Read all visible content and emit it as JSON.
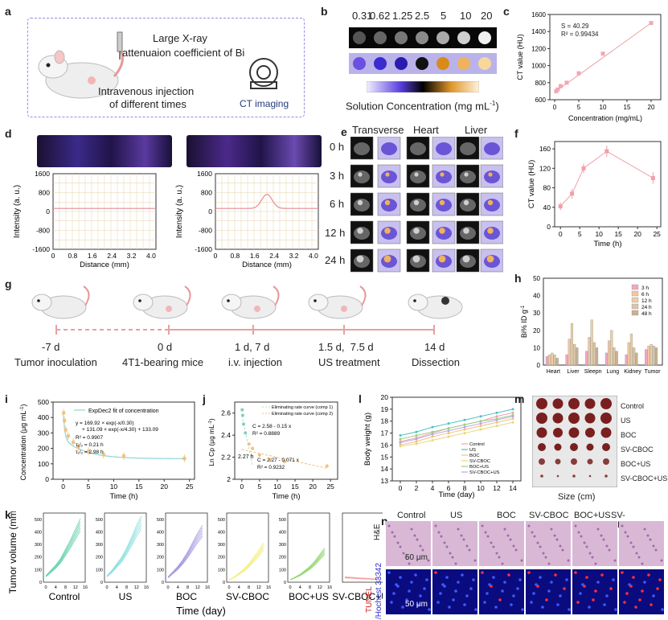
{
  "panels": {
    "a": {
      "letter": "a",
      "text1": "Large X-ray",
      "text2": "attenuaion coefficient of Bi",
      "text3": "Intravenous injection",
      "text4": "of different times",
      "ct_label": "CT imaging"
    },
    "b": {
      "letter": "b",
      "concentrations": [
        "0.31",
        "0.62",
        "1.25",
        "2.5",
        "5",
        "10",
        "20"
      ],
      "axis_label": "Solution Concentration (mg mL",
      "axis_sup": "-1",
      "axis_close": ")"
    },
    "c": {
      "letter": "c",
      "s_text": "S = 40.29",
      "r2_text": "R² = 0.99434",
      "xlabel": "Concentration (mg/mL)",
      "ylabel": "CT value (HU)"
    },
    "d": {
      "letter": "d",
      "ylabel": "Intensity (a. u.)",
      "xlabel": "Distance (mm)",
      "yticks": [
        "1600",
        "800",
        "0",
        "-800",
        "-1600"
      ],
      "xticks": [
        "0",
        "0.8",
        "1.6",
        "2.4",
        "3.2",
        "4.0"
      ]
    },
    "e": {
      "letter": "e",
      "cols": [
        "Transverse",
        "Heart",
        "Liver"
      ],
      "rows": [
        "0 h",
        "3 h",
        "6 h",
        "12 h",
        "24 h"
      ]
    },
    "f": {
      "letter": "f",
      "xlabel": "Time (h)",
      "ylabel": "CT value (HU)"
    },
    "g": {
      "letter": "g",
      "days": [
        "-7 d",
        "0 d",
        "1 d, 7 d",
        "1.5 d,  7.5 d",
        "14 d"
      ],
      "labels": [
        "Tumor inoculation",
        "4T1-bearing mice",
        "i.v. injection",
        "US treatment",
        "Dissection"
      ]
    },
    "h": {
      "letter": "h",
      "ylabel": "Bi% ID g",
      "ysup": "-1",
      "legend": [
        "3 h",
        "6 h",
        "12 h",
        "24 h",
        "48 h"
      ],
      "categories": [
        "Heart",
        "Liver",
        "Sleepn",
        "Lung",
        "Kidney",
        "Tumor"
      ]
    },
    "i": {
      "letter": "i",
      "legend": "ExpDec2 fit of concentration",
      "eq1": "y = 169.92 × exp(-x/0.30)",
      "eq2": "+ 131.09 × exp(-x/4.30) + 133.09",
      "r2": "R² = 0.9907",
      "t1": "τ₁/₂ = 0.21 h",
      "t2": "τ₁/₂ = 2.98 h",
      "xlabel": "Time (h)",
      "ylabel": "Concentration (μg mL",
      "ysup": "-1",
      "yclose": ")"
    },
    "j": {
      "letter": "j",
      "legend1": "Eliminating rate curve (comp 1)",
      "legend2": "Eliminating rate curve (comp 2)",
      "eqa": "C",
      "eqa2": " = 2.58 - 0.15 x",
      "r2a": "R² = 0.8889",
      "eqb2": " = 2.27 - 0.071 x",
      "r2b": "R² = 0.9232",
      "time_mark": "2.27 h",
      "xlabel": "Time (h)",
      "ylabel": "Ln Cp (μg mL",
      "ysup": "-1",
      "yclose": ")"
    },
    "l": {
      "letter": "l",
      "legend": [
        "Control",
        "US",
        "BOC",
        "SV-CBOC",
        "BOC+US",
        "SV-CBOC+US"
      ],
      "xlabel": "Time (day)",
      "ylabel": "Body weight (g)"
    },
    "m": {
      "letter": "m",
      "groups": [
        "Control",
        "US",
        "BOC",
        "SV-CBOC",
        "BOC+US",
        "SV-CBOC+US"
      ],
      "xlabel": "Size (cm)"
    },
    "k": {
      "letter": "k",
      "groups": [
        "Control",
        "US",
        "BOC",
        "SV-CBOC",
        "BOC+US",
        "SV-CBOC+US"
      ],
      "xlabel": "Time (day)",
      "ylabel": "Tumor volume (mm",
      "ysup": "3",
      "yclose": ")"
    },
    "n": {
      "letter": "n",
      "groups": [
        "Control",
        "US",
        "BOC",
        "SV-CBOC",
        "BOC+US",
        "SV-CBOC+US"
      ],
      "row1": "H&E",
      "row2a": "TUNEL",
      "row2b": "/Hochest 33342",
      "scale": "50 μm"
    }
  },
  "chart_data": [
    {
      "id": "c",
      "type": "scatter",
      "x": [
        0.31,
        0.62,
        1.25,
        2.5,
        5,
        10,
        20
      ],
      "y": [
        700,
        720,
        760,
        800,
        910,
        1140,
        1500
      ],
      "xlim": [
        -1,
        22
      ],
      "ylim": [
        600,
        1600
      ],
      "xticks": [
        0,
        5,
        10,
        15,
        20
      ],
      "yticks": [
        600,
        800,
        1000,
        1200,
        1400,
        1600
      ]
    },
    {
      "id": "f",
      "type": "line",
      "x": [
        0,
        3,
        6,
        12,
        24
      ],
      "y": [
        42,
        68,
        120,
        155,
        100
      ],
      "err": [
        8,
        10,
        10,
        12,
        12
      ],
      "xlim": [
        -1.5,
        26
      ],
      "ylim": [
        0,
        175
      ],
      "xticks": [
        0,
        5,
        10,
        15,
        20,
        25
      ],
      "yticks": [
        0,
        40,
        80,
        120,
        160
      ]
    },
    {
      "id": "h",
      "type": "bar",
      "categories": [
        "Heart",
        "Liver",
        "Sleepn",
        "Lung",
        "Kidney",
        "Tumor"
      ],
      "series": [
        {
          "name": "3 h",
          "values": [
            5,
            6,
            8,
            7,
            6,
            9
          ]
        },
        {
          "name": "6 h",
          "values": [
            6,
            15,
            16,
            14,
            13,
            11
          ]
        },
        {
          "name": "12 h",
          "values": [
            7,
            24,
            26,
            20,
            18,
            12
          ]
        },
        {
          "name": "24 h",
          "values": [
            6,
            12,
            13,
            10,
            10,
            11
          ]
        },
        {
          "name": "48 h",
          "values": [
            4,
            10,
            10,
            8,
            7,
            10
          ]
        }
      ],
      "ylim": [
        0,
        50
      ],
      "yticks": [
        0,
        10,
        20,
        30,
        40,
        50
      ]
    },
    {
      "id": "i",
      "type": "scatter",
      "x": [
        0.1,
        0.25,
        0.5,
        1,
        2,
        3,
        5,
        8,
        12,
        24
      ],
      "y": [
        430,
        380,
        320,
        280,
        240,
        210,
        180,
        160,
        150,
        135
      ],
      "xlim": [
        -2,
        26
      ],
      "ylim": [
        0,
        500
      ],
      "xticks": [
        0,
        5,
        10,
        15,
        20,
        25
      ],
      "yticks": [
        0,
        100,
        200,
        300,
        400,
        500
      ]
    },
    {
      "id": "j",
      "type": "scatter",
      "x": [
        0.1,
        0.25,
        0.5,
        1,
        2,
        3,
        5,
        8,
        12,
        24
      ],
      "y": [
        2.63,
        2.58,
        2.5,
        2.42,
        2.32,
        2.28,
        2.22,
        2.18,
        2.16,
        2.12
      ],
      "xlim": [
        -2,
        27
      ],
      "ylim": [
        2.0,
        2.7
      ],
      "xticks": [
        0,
        5,
        10,
        15,
        20,
        25
      ],
      "yticks": [
        2.0,
        2.2,
        2.4,
        2.6
      ]
    },
    {
      "id": "l",
      "type": "line",
      "x": [
        0,
        2,
        4,
        6,
        8,
        10,
        12,
        14
      ],
      "series": [
        {
          "name": "Control",
          "values": [
            16.3,
            16.6,
            17,
            17.4,
            17.7,
            18,
            18.4,
            18.7
          ]
        },
        {
          "name": "US",
          "values": [
            16.8,
            17.1,
            17.5,
            17.8,
            18.1,
            18.4,
            18.7,
            19
          ]
        },
        {
          "name": "BOC",
          "values": [
            16.0,
            16.3,
            16.7,
            17,
            17.3,
            17.6,
            17.9,
            18.2
          ]
        },
        {
          "name": "SV-CBOC",
          "values": [
            15.9,
            16.1,
            16.4,
            16.7,
            17,
            17.3,
            17.6,
            17.9
          ]
        },
        {
          "name": "BOC+US",
          "values": [
            16.5,
            16.8,
            17.1,
            17.4,
            17.7,
            18,
            18.2,
            18.5
          ]
        },
        {
          "name": "SV-CBOC+US",
          "values": [
            16.2,
            16.5,
            16.9,
            17.2,
            17.5,
            17.8,
            18.1,
            18.4
          ]
        }
      ],
      "xlim": [
        -1,
        15
      ],
      "ylim": [
        13,
        20
      ],
      "xticks": [
        0,
        2,
        4,
        6,
        8,
        10,
        12,
        14
      ],
      "yticks": [
        13,
        14,
        15,
        16,
        17,
        18,
        19,
        20
      ]
    },
    {
      "id": "k",
      "type": "line",
      "groups": [
        "Control",
        "US",
        "BOC",
        "SV-CBOC",
        "BOC+US",
        "SV-CBOC+US"
      ],
      "x": [
        0,
        2,
        4,
        6,
        8,
        10,
        12,
        14
      ],
      "values": [
        [
          50,
          90,
          130,
          180,
          250,
          320,
          400,
          480
        ],
        [
          50,
          90,
          140,
          190,
          260,
          340,
          430,
          500
        ],
        [
          40,
          80,
          120,
          170,
          230,
          300,
          370,
          430
        ],
        [
          20,
          40,
          70,
          100,
          140,
          190,
          240,
          300
        ],
        [
          20,
          40,
          60,
          90,
          120,
          160,
          210,
          260
        ],
        [
          40,
          38,
          35,
          32,
          30,
          28,
          25,
          22
        ]
      ],
      "xlim": [
        -1,
        16
      ],
      "ylim": [
        0,
        550
      ],
      "xticks": [
        0,
        4,
        8,
        12,
        16
      ],
      "yticks": [
        0,
        100,
        200,
        300,
        400,
        500
      ]
    }
  ],
  "colors": {
    "h_series": [
      "#f2a7c2",
      "#f4c6a0",
      "#e9cfa0",
      "#d9c6ab",
      "#c8b28e"
    ],
    "l_series": [
      "#f59fb0",
      "#4ec2c2",
      "#f2c07a",
      "#e8d77a",
      "#9ed07a",
      "#b6a7e8"
    ],
    "k_series": [
      "#6fd3b4",
      "#8fe0e0",
      "#a89ae0",
      "#f5f08a",
      "#9ad878",
      "#f2a0a0"
    ]
  }
}
